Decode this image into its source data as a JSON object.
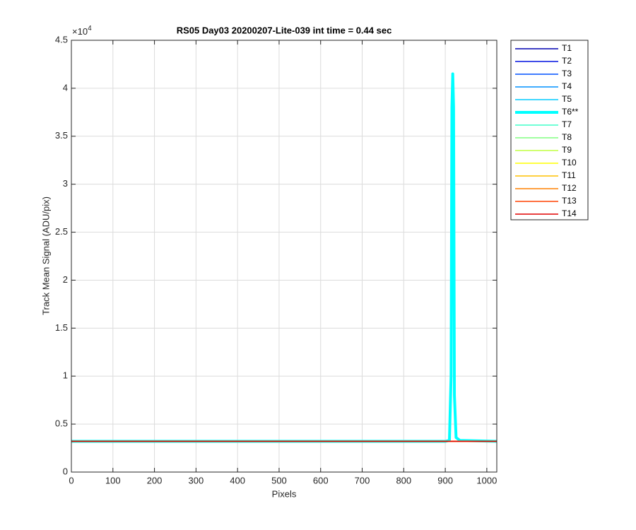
{
  "chart_data": {
    "type": "line",
    "title": "RS05 Day03 20200207-Lite-039 int time = 0.44 sec",
    "x_label": "Pixels",
    "y_label": "Track Mean Signal (ADU/pix)",
    "y_exponent": {
      "base": "×10",
      "power": "4"
    },
    "x": [
      0,
      900,
      910,
      914,
      916,
      918,
      920,
      922,
      926,
      935,
      1024
    ],
    "xlim": [
      0,
      1024
    ],
    "xticks": [
      0,
      100,
      200,
      300,
      400,
      500,
      600,
      700,
      800,
      900,
      1000
    ],
    "ylim": [
      0,
      45000
    ],
    "yticks": [
      0,
      {
        "value": 5000,
        "label": "0.5"
      },
      {
        "value": 10000,
        "label": "1"
      },
      {
        "value": 15000,
        "label": "1.5"
      },
      {
        "value": 20000,
        "label": "2"
      },
      {
        "value": 25000,
        "label": "2.5"
      },
      {
        "value": 30000,
        "label": "3"
      },
      {
        "value": 35000,
        "label": "3.5"
      },
      {
        "value": 40000,
        "label": "4"
      },
      {
        "value": 45000,
        "label": "4.5"
      }
    ],
    "grid": true,
    "legend": "outside-right",
    "series": [
      {
        "name": "T1",
        "color": "#0000b0",
        "width": 1.5,
        "values": [
          3200,
          3200,
          3200,
          3200,
          3200,
          3200,
          3200,
          3200,
          3200,
          3200,
          3200
        ]
      },
      {
        "name": "T2",
        "color": "#0010e0",
        "width": 1.5,
        "values": [
          3200,
          3200,
          3200,
          3200,
          3200,
          3200,
          3200,
          3200,
          3200,
          3200,
          3200
        ]
      },
      {
        "name": "T3",
        "color": "#0050ff",
        "width": 1.5,
        "values": [
          3200,
          3200,
          3200,
          3200,
          3200,
          3200,
          3200,
          3200,
          3200,
          3200,
          3200
        ]
      },
      {
        "name": "T4",
        "color": "#0090ff",
        "width": 1.5,
        "values": [
          3200,
          3200,
          3200,
          3200,
          3200,
          3200,
          3200,
          3200,
          3200,
          3200,
          3200
        ]
      },
      {
        "name": "T5",
        "color": "#00ccff",
        "width": 1.5,
        "values": [
          3200,
          3200,
          3200,
          3200,
          3200,
          3200,
          3200,
          3200,
          3200,
          3200,
          3200
        ]
      },
      {
        "name": "T6**",
        "color": "#00ffff",
        "width": 4,
        "values": [
          3200,
          3200,
          3300,
          10000,
          38000,
          41500,
          38000,
          8000,
          3600,
          3300,
          3200
        ]
      },
      {
        "name": "T7",
        "color": "#40ffc8",
        "width": 1.5,
        "values": [
          3200,
          3200,
          3200,
          3200,
          3200,
          3200,
          3200,
          3200,
          3200,
          3200,
          3200
        ]
      },
      {
        "name": "T8",
        "color": "#80ff80",
        "width": 1.5,
        "values": [
          3200,
          3200,
          3200,
          3200,
          3200,
          3200,
          3200,
          3200,
          3200,
          3200,
          3200
        ]
      },
      {
        "name": "T9",
        "color": "#c0ff40",
        "width": 1.5,
        "values": [
          3200,
          3200,
          3200,
          3200,
          3200,
          3200,
          3200,
          3200,
          3200,
          3200,
          3200
        ]
      },
      {
        "name": "T10",
        "color": "#ffff00",
        "width": 1.5,
        "values": [
          3200,
          3200,
          3200,
          3200,
          3200,
          3200,
          3200,
          3200,
          3200,
          3200,
          3200
        ]
      },
      {
        "name": "T11",
        "color": "#ffc000",
        "width": 1.5,
        "values": [
          3200,
          3200,
          3200,
          3200,
          3200,
          3200,
          3200,
          3200,
          3200,
          3200,
          3200
        ]
      },
      {
        "name": "T12",
        "color": "#ff8000",
        "width": 1.5,
        "values": [
          3200,
          3200,
          3200,
          3200,
          3200,
          3200,
          3200,
          3200,
          3200,
          3200,
          3200
        ]
      },
      {
        "name": "T13",
        "color": "#ff4000",
        "width": 1.5,
        "values": [
          3200,
          3200,
          3200,
          3200,
          3200,
          3200,
          3200,
          3200,
          3200,
          3200,
          3200
        ]
      },
      {
        "name": "T14",
        "color": "#e00000",
        "width": 1.5,
        "values": [
          3200,
          3200,
          3200,
          3200,
          3200,
          3200,
          3200,
          3200,
          3200,
          3200,
          3200
        ]
      }
    ]
  }
}
